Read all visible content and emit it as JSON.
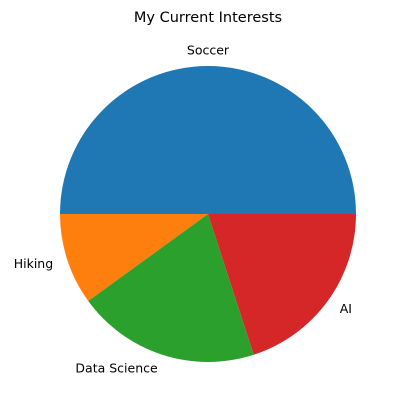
{
  "chart_data": {
    "type": "pie",
    "title": "My Current Interests",
    "categories": [
      "Soccer",
      "Hiking",
      "Data Science",
      "AI"
    ],
    "values": [
      50,
      10,
      20,
      20
    ],
    "colors": [
      "#1f77b4",
      "#ff7f0e",
      "#2ca02c",
      "#d62728"
    ],
    "start_angle": 0,
    "direction": "counterclockwise"
  }
}
